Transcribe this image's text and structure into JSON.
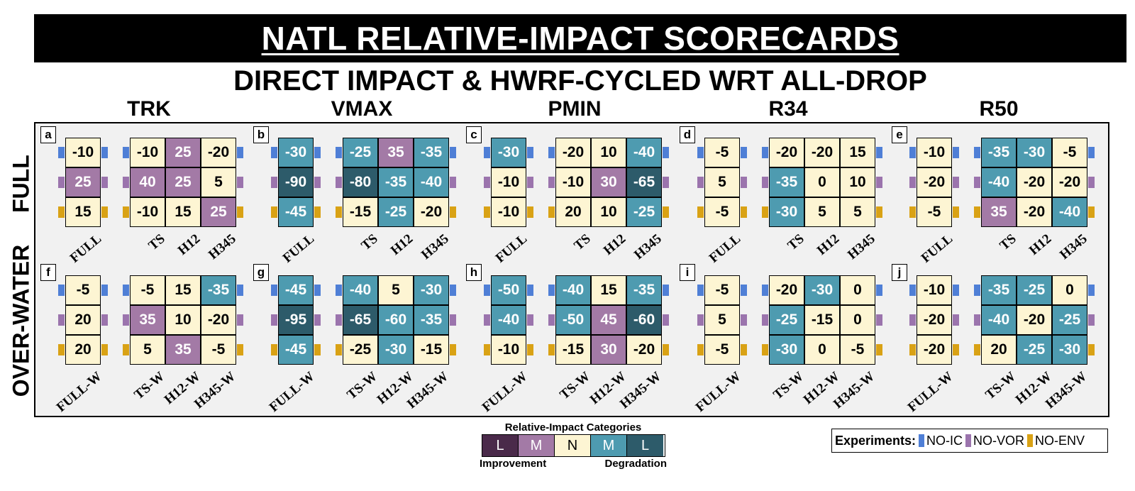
{
  "title": "NATL RELATIVE-IMPACT SCORECARDS",
  "subtitle": "DIRECT IMPACT & HWRF-CYCLED WRT ALL-DROP",
  "row_labels": [
    "FULL",
    "OVER-WATER"
  ],
  "experiments_legend": {
    "title": "Experiments:",
    "items": [
      {
        "label": "NO-IC",
        "color": "#4f7fd6"
      },
      {
        "label": "NO-VOR",
        "color": "#9b74ad"
      },
      {
        "label": "NO-ENV",
        "color": "#d9a215"
      }
    ]
  },
  "category_legend": {
    "title": "Relative-Impact Categories",
    "categories": [
      {
        "label": "L",
        "color": "#4a2a4a",
        "text_color": "#ffffff"
      },
      {
        "label": "M",
        "color": "#a37aa6",
        "text_color": "#ffffff"
      },
      {
        "label": "N",
        "color": "#fdf5d3",
        "text_color": "#000000"
      },
      {
        "label": "M",
        "color": "#4e9bb0",
        "text_color": "#ffffff"
      },
      {
        "label": "L",
        "color": "#2d5b6a",
        "text_color": "#ffffff"
      }
    ],
    "left_label": "Improvement",
    "right_label": "Degradation"
  },
  "chart_data": {
    "type": "heatmap",
    "metrics": [
      "TRK",
      "VMAX",
      "PMIN",
      "R34",
      "R50"
    ],
    "experiments": [
      "NO-IC",
      "NO-VOR",
      "NO-ENV"
    ],
    "panels": [
      {
        "letter": "a",
        "metric": "TRK",
        "row": "FULL",
        "single_label": "FULL",
        "group_labels": [
          "TS",
          "H12",
          "H345"
        ],
        "single": [
          [
            "-10",
            "N"
          ],
          [
            "25",
            "IM"
          ],
          [
            "15",
            "N"
          ]
        ],
        "grid": [
          [
            [
              "-10",
              "N"
            ],
            [
              "25",
              "IM"
            ],
            [
              "-20",
              "N"
            ]
          ],
          [
            [
              "40",
              "IM"
            ],
            [
              "25",
              "IM"
            ],
            [
              "5",
              "N"
            ]
          ],
          [
            [
              "-10",
              "N"
            ],
            [
              "15",
              "N"
            ],
            [
              "25",
              "IM"
            ]
          ]
        ]
      },
      {
        "letter": "b",
        "metric": "VMAX",
        "row": "FULL",
        "single_label": "FULL",
        "group_labels": [
          "TS",
          "H12",
          "H345"
        ],
        "single": [
          [
            "-30",
            "DM"
          ],
          [
            "-90",
            "DL"
          ],
          [
            "-45",
            "DM"
          ]
        ],
        "grid": [
          [
            [
              "-25",
              "DM"
            ],
            [
              "35",
              "IM"
            ],
            [
              "-35",
              "DM"
            ]
          ],
          [
            [
              "-80",
              "DL"
            ],
            [
              "-35",
              "DM"
            ],
            [
              "-40",
              "DM"
            ]
          ],
          [
            [
              "-15",
              "N"
            ],
            [
              "-25",
              "DM"
            ],
            [
              "-20",
              "N"
            ]
          ]
        ]
      },
      {
        "letter": "c",
        "metric": "PMIN",
        "row": "FULL",
        "single_label": "FULL",
        "group_labels": [
          "TS",
          "H12",
          "H345"
        ],
        "single": [
          [
            "-30",
            "DM"
          ],
          [
            "-10",
            "N"
          ],
          [
            "-10",
            "N"
          ]
        ],
        "grid": [
          [
            [
              "-20",
              "N"
            ],
            [
              "10",
              "N"
            ],
            [
              "-40",
              "DM"
            ]
          ],
          [
            [
              "-10",
              "N"
            ],
            [
              "30",
              "IM"
            ],
            [
              "-65",
              "DL"
            ]
          ],
          [
            [
              "20",
              "N"
            ],
            [
              "10",
              "N"
            ],
            [
              "-25",
              "DM"
            ]
          ]
        ]
      },
      {
        "letter": "d",
        "metric": "R34",
        "row": "FULL",
        "single_label": "FULL",
        "group_labels": [
          "TS",
          "H12",
          "H345"
        ],
        "single": [
          [
            "-5",
            "N"
          ],
          [
            "5",
            "N"
          ],
          [
            "-5",
            "N"
          ]
        ],
        "grid": [
          [
            [
              "-20",
              "N"
            ],
            [
              "-20",
              "N"
            ],
            [
              "15",
              "N"
            ]
          ],
          [
            [
              "-35",
              "DM"
            ],
            [
              "0",
              "N"
            ],
            [
              "10",
              "N"
            ]
          ],
          [
            [
              "-30",
              "DM"
            ],
            [
              "5",
              "N"
            ],
            [
              "5",
              "N"
            ]
          ]
        ]
      },
      {
        "letter": "e",
        "metric": "R50",
        "row": "FULL",
        "single_label": "FULL",
        "group_labels": [
          "TS",
          "H12",
          "H345"
        ],
        "single": [
          [
            "-10",
            "N"
          ],
          [
            "-20",
            "N"
          ],
          [
            "-5",
            "N"
          ]
        ],
        "grid": [
          [
            [
              "-35",
              "DM"
            ],
            [
              "-30",
              "DM"
            ],
            [
              "-5",
              "N"
            ]
          ],
          [
            [
              "-40",
              "DM"
            ],
            [
              "-20",
              "N"
            ],
            [
              "-20",
              "N"
            ]
          ],
          [
            [
              "35",
              "IM"
            ],
            [
              "-20",
              "N"
            ],
            [
              "-40",
              "DM"
            ]
          ]
        ]
      },
      {
        "letter": "f",
        "metric": "TRK",
        "row": "OVER-WATER",
        "single_label": "FULL-W",
        "group_labels": [
          "TS-W",
          "H12-W",
          "H345-W"
        ],
        "single": [
          [
            "-5",
            "N"
          ],
          [
            "20",
            "N"
          ],
          [
            "20",
            "N"
          ]
        ],
        "grid": [
          [
            [
              "-5",
              "N"
            ],
            [
              "15",
              "N"
            ],
            [
              "-35",
              "DM"
            ]
          ],
          [
            [
              "35",
              "IM"
            ],
            [
              "10",
              "N"
            ],
            [
              "-20",
              "N"
            ]
          ],
          [
            [
              "5",
              "N"
            ],
            [
              "35",
              "IM"
            ],
            [
              "-5",
              "N"
            ]
          ]
        ]
      },
      {
        "letter": "g",
        "metric": "VMAX",
        "row": "OVER-WATER",
        "single_label": "FULL-W",
        "group_labels": [
          "TS-W",
          "H12-W",
          "H345-W"
        ],
        "single": [
          [
            "-45",
            "DM"
          ],
          [
            "-95",
            "DL"
          ],
          [
            "-45",
            "DM"
          ]
        ],
        "grid": [
          [
            [
              "-40",
              "DM"
            ],
            [
              "5",
              "N"
            ],
            [
              "-30",
              "DM"
            ]
          ],
          [
            [
              "-65",
              "DL"
            ],
            [
              "-60",
              "DM"
            ],
            [
              "-35",
              "DM"
            ]
          ],
          [
            [
              "-25",
              "N"
            ],
            [
              "-30",
              "DM"
            ],
            [
              "-15",
              "N"
            ]
          ]
        ]
      },
      {
        "letter": "h",
        "metric": "PMIN",
        "row": "OVER-WATER",
        "single_label": "FULL-W",
        "group_labels": [
          "TS-W",
          "H12-W",
          "H345-W"
        ],
        "single": [
          [
            "-50",
            "DM"
          ],
          [
            "-40",
            "DM"
          ],
          [
            "-10",
            "N"
          ]
        ],
        "grid": [
          [
            [
              "-40",
              "DM"
            ],
            [
              "15",
              "N"
            ],
            [
              "-35",
              "DM"
            ]
          ],
          [
            [
              "-50",
              "DM"
            ],
            [
              "45",
              "IM"
            ],
            [
              "-60",
              "DL"
            ]
          ],
          [
            [
              "-15",
              "N"
            ],
            [
              "30",
              "IM"
            ],
            [
              "-20",
              "N"
            ]
          ]
        ]
      },
      {
        "letter": "i",
        "metric": "R34",
        "row": "OVER-WATER",
        "single_label": "FULL-W",
        "group_labels": [
          "TS-W",
          "H12-W",
          "H345-W"
        ],
        "single": [
          [
            "-5",
            "N"
          ],
          [
            "5",
            "N"
          ],
          [
            "-5",
            "N"
          ]
        ],
        "grid": [
          [
            [
              "-20",
              "N"
            ],
            [
              "-30",
              "DM"
            ],
            [
              "0",
              "N"
            ]
          ],
          [
            [
              "-25",
              "DM"
            ],
            [
              "-15",
              "N"
            ],
            [
              "0",
              "N"
            ]
          ],
          [
            [
              "-30",
              "DM"
            ],
            [
              "0",
              "N"
            ],
            [
              "-5",
              "N"
            ]
          ]
        ]
      },
      {
        "letter": "j",
        "metric": "R50",
        "row": "OVER-WATER",
        "single_label": "FULL-W",
        "group_labels": [
          "TS-W",
          "H12-W",
          "H345-W"
        ],
        "single": [
          [
            "-10",
            "N"
          ],
          [
            "-20",
            "N"
          ],
          [
            "-20",
            "N"
          ]
        ],
        "grid": [
          [
            [
              "-35",
              "DM"
            ],
            [
              "-25",
              "DM"
            ],
            [
              "0",
              "N"
            ]
          ],
          [
            [
              "-40",
              "DM"
            ],
            [
              "-20",
              "N"
            ],
            [
              "-25",
              "DM"
            ]
          ],
          [
            [
              "20",
              "N"
            ],
            [
              "-25",
              "DM"
            ],
            [
              "-30",
              "DM"
            ]
          ]
        ]
      }
    ],
    "category_colors": {
      "IL": {
        "fill": "#4a2a4a",
        "text": "#ffffff"
      },
      "IM": {
        "fill": "#a37aa6",
        "text": "#ffffff"
      },
      "N": {
        "fill": "#fdf5d3",
        "text": "#000000"
      },
      "DM": {
        "fill": "#4e9bb0",
        "text": "#ffffff"
      },
      "DL": {
        "fill": "#2d5b6a",
        "text": "#ffffff"
      }
    }
  }
}
